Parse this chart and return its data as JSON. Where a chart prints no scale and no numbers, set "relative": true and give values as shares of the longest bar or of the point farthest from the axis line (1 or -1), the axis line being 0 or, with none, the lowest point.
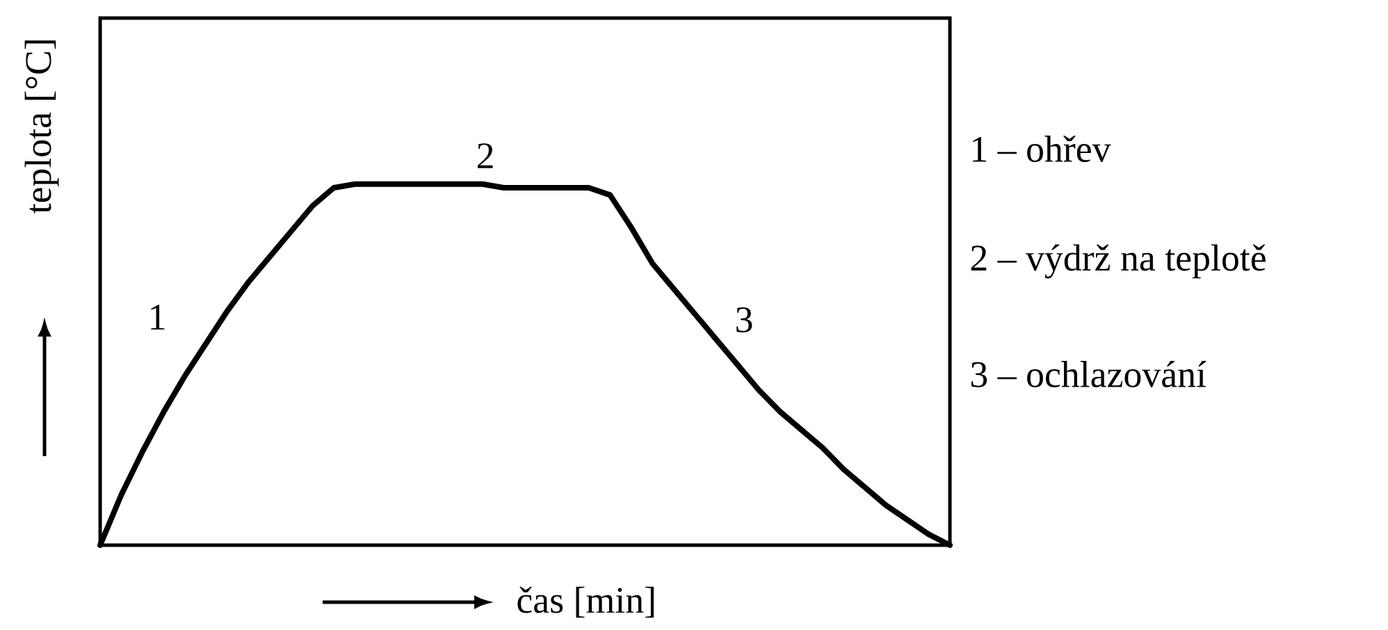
{
  "chart_data": {
    "type": "line",
    "relative": true,
    "xlabel": "čas [min]",
    "ylabel": "teplota [°C]",
    "categories": [
      null,
      null,
      null,
      null,
      null,
      null,
      null,
      null,
      null,
      null,
      null,
      null,
      null,
      null,
      null,
      null,
      null,
      null,
      null,
      null,
      null,
      null,
      null,
      null,
      null,
      null,
      null,
      null,
      null,
      null,
      null,
      null,
      null,
      null,
      null,
      null,
      null,
      null,
      null,
      null,
      null
    ],
    "series": [
      {
        "color": "#000000",
        "values": [
          0,
          0.14,
          0.26,
          0.37,
          0.47,
          0.56,
          0.65,
          0.73,
          0.8,
          0.87,
          0.94,
          0.99,
          1,
          1,
          1,
          1,
          1,
          1,
          1,
          0.99,
          0.99,
          0.99,
          0.99,
          0.99,
          0.97,
          0.88,
          0.78,
          0.71,
          0.64,
          0.57,
          0.5,
          0.43,
          0.37,
          0.32,
          0.27,
          0.21,
          0.16,
          0.11,
          0.07,
          0.03,
          0
        ]
      }
    ],
    "annotations": [
      "1",
      "2",
      "3",
      "1 – ohřev",
      "2 – výdrž na teplotě",
      "3 – ochlazování"
    ]
  }
}
